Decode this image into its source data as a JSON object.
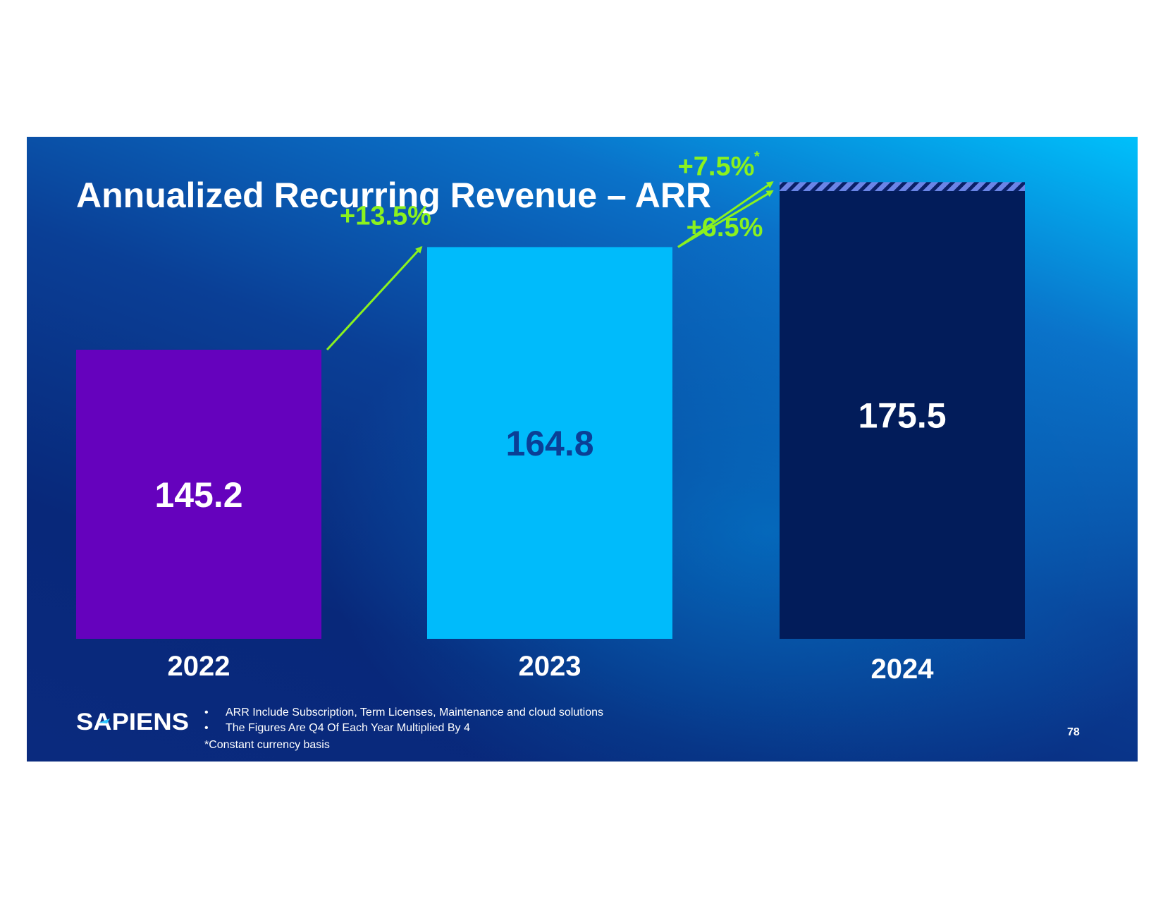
{
  "slide": {
    "title": "Annualized Recurring Revenue – ARR",
    "page_number": "78",
    "logo_text": "SAPIENS",
    "footnotes": [
      "ARR Include Subscription, Term Licenses, Maintenance and cloud solutions",
      "The Figures Are Q4 Of Each Year Multiplied By 4"
    ],
    "bullet": "•",
    "constant_currency_note": "*Constant currency basis"
  },
  "chart_data": {
    "type": "bar",
    "title": "Annualized Recurring Revenue – ARR",
    "categories": [
      "2022",
      "2023",
      "2024"
    ],
    "values": [
      145.2,
      164.8,
      175.5
    ],
    "value_labels": [
      "145.2",
      "164.8",
      "175.5"
    ],
    "extra_constant_currency_2024": 1.7,
    "bar_colors": [
      "#6502bd",
      "#00bbfb",
      "#021c5a"
    ],
    "value_label_colors": [
      "#ffffff",
      "#0a3f96",
      "#ffffff"
    ],
    "hatch_color": "#6b84e6",
    "growth_color": "#8bf21e",
    "growth_annotations": [
      {
        "label": "+13.5%",
        "from": "2022",
        "to": "2023"
      },
      {
        "label": "+7.5%",
        "superscript": "*",
        "from": "2023",
        "to": "2024",
        "basis": "constant currency"
      },
      {
        "label": "+6.5%",
        "from": "2023",
        "to": "2024"
      }
    ],
    "ylim": [
      0,
      195
    ]
  }
}
